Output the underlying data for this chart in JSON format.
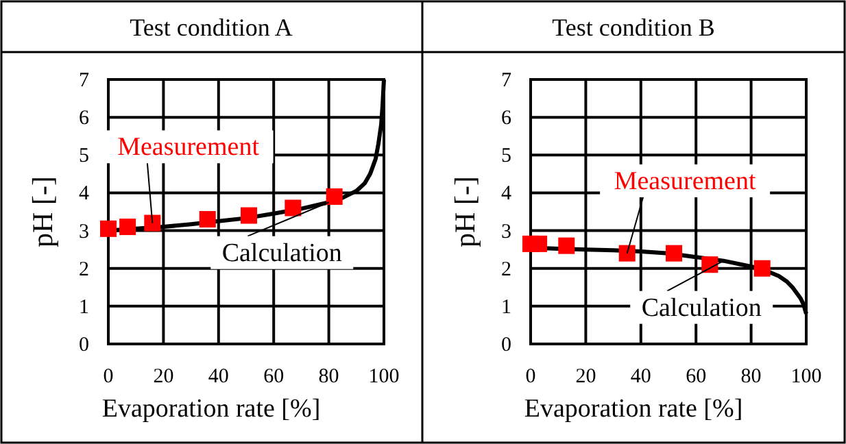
{
  "chart_data": [
    {
      "type": "line",
      "title": "Test condition A",
      "xlabel": "Evaporation rate [%]",
      "ylabel": "pH [-]",
      "xlim": [
        0,
        100
      ],
      "xticks": [
        0,
        20,
        40,
        60,
        80,
        100
      ],
      "ylim": [
        0,
        7
      ],
      "yticks": [
        0,
        1,
        2,
        3,
        4,
        5,
        6,
        7
      ],
      "grid": true,
      "series": [
        {
          "name": "Calculation",
          "color": "#000000",
          "marker": "none",
          "line_style": "solid",
          "x": [
            0,
            10,
            20,
            30,
            40,
            50,
            60,
            70,
            80,
            85,
            90,
            93,
            95,
            97,
            98,
            99,
            99.5,
            100
          ],
          "values": [
            3.0,
            3.05,
            3.1,
            3.17,
            3.25,
            3.33,
            3.45,
            3.58,
            3.75,
            3.87,
            4.05,
            4.25,
            4.5,
            4.9,
            5.3,
            5.8,
            6.3,
            7.0
          ]
        },
        {
          "name": "Measurement",
          "type": "scatter",
          "color": "#ff0000",
          "marker": "square",
          "x": [
            0,
            7,
            16,
            36,
            51,
            67,
            82
          ],
          "values": [
            3.05,
            3.1,
            3.2,
            3.3,
            3.4,
            3.6,
            3.9
          ]
        }
      ]
    },
    {
      "type": "line",
      "title": "Test condition B",
      "xlabel": "Evaporation rate [%]",
      "ylabel": "pH [-]",
      "xlim": [
        0,
        100
      ],
      "xticks": [
        0,
        20,
        40,
        60,
        80,
        100
      ],
      "ylim": [
        0,
        7
      ],
      "yticks": [
        0,
        1,
        2,
        3,
        4,
        5,
        6,
        7
      ],
      "grid": true,
      "series": [
        {
          "name": "Calculation",
          "color": "#000000",
          "marker": "none",
          "line_style": "solid",
          "x": [
            0,
            10,
            20,
            30,
            40,
            50,
            60,
            70,
            80,
            85,
            90,
            93,
            95,
            97,
            98,
            99,
            100
          ],
          "values": [
            2.55,
            2.52,
            2.5,
            2.48,
            2.45,
            2.4,
            2.3,
            2.2,
            2.05,
            1.95,
            1.8,
            1.65,
            1.5,
            1.3,
            1.2,
            1.05,
            0.8
          ]
        },
        {
          "name": "Measurement",
          "type": "scatter",
          "color": "#ff0000",
          "marker": "square",
          "x": [
            0,
            3,
            13,
            35,
            52,
            65,
            84
          ],
          "values": [
            2.65,
            2.65,
            2.6,
            2.4,
            2.4,
            2.1,
            2.0
          ]
        }
      ]
    }
  ]
}
